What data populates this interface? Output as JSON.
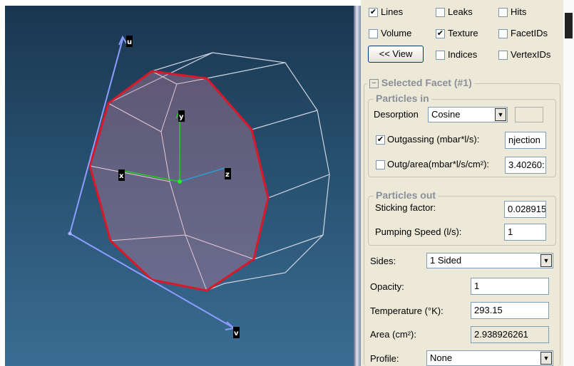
{
  "viewer": {
    "axes": {
      "u": "u",
      "v": "v",
      "x": "x",
      "y": "y",
      "z": "z"
    },
    "colors": {
      "selected_edge": "#d8192a",
      "wireframe": "#cfd6e2",
      "uv_axis": "#8c9cff",
      "xyz_axis": "#22cc22"
    }
  },
  "view_options": {
    "lines": {
      "label": "Lines",
      "checked": true
    },
    "leaks": {
      "label": "Leaks",
      "checked": false
    },
    "hits": {
      "label": "Hits",
      "checked": false
    },
    "volume": {
      "label": "Volume",
      "checked": false
    },
    "texture": {
      "label": "Texture",
      "checked": true
    },
    "facet_ids": {
      "label": "FacetIDs",
      "checked": false
    },
    "view_button": "<< View",
    "indices": {
      "label": "Indices",
      "checked": false
    },
    "vertex_ids": {
      "label": "VertexIDs",
      "checked": false
    }
  },
  "selected_facet": {
    "title": "Selected Facet (#1)",
    "collapse_symbol": "−",
    "particles_in": {
      "title": "Particles in",
      "desorption_label": "Desorption",
      "desorption_value": "Cosine",
      "outgassing": {
        "label": "Outgassing (mbar*l/s):",
        "checked": true,
        "value": "njection"
      },
      "outg_area": {
        "label": "Outg/area(mbar*l/s/cm²):",
        "checked": false,
        "value": "3.40260:"
      }
    },
    "particles_out": {
      "title": "Particles out",
      "sticking_label": "Sticking factor:",
      "sticking_value": "0.028915",
      "pumping_label": "Pumping Speed (l/s):",
      "pumping_value": "1"
    },
    "sides_label": "Sides:",
    "sides_value": "1 Sided",
    "opacity_label": "Opacity:",
    "opacity_value": "1",
    "temperature_label": "Temperature (°K):",
    "temperature_value": "293.15",
    "area_label": "Area (cm²):",
    "area_value": "2.938926261",
    "profile_label": "Profile:",
    "profile_value": "None"
  }
}
